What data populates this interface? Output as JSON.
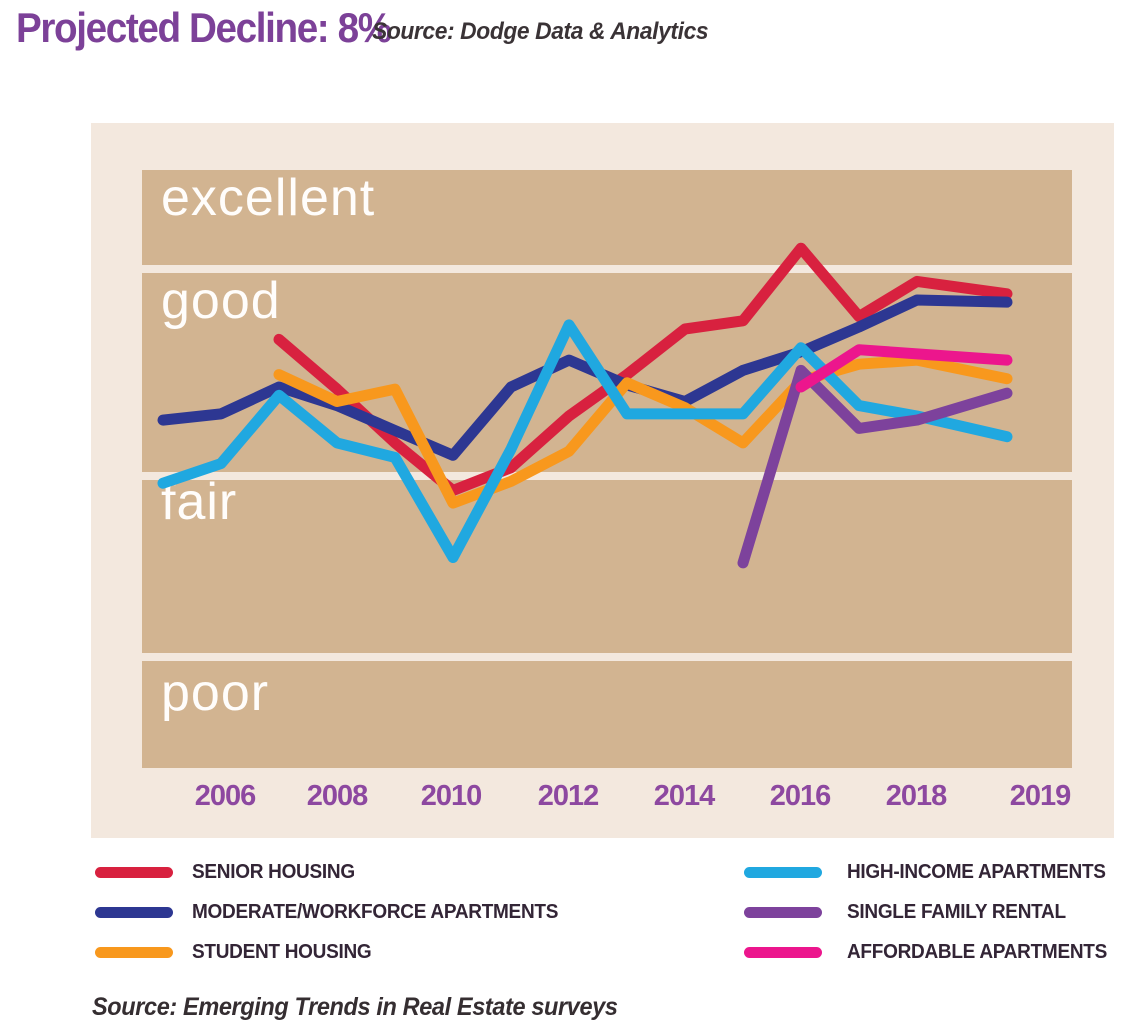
{
  "header": {
    "title": "Projected Decline: 8%",
    "source": "Source:  Dodge Data & Analytics"
  },
  "footer": {
    "source": "Source:  Emerging Trends in Real Estate surveys"
  },
  "colors": {
    "panel": "#f3e8de",
    "band": "#d2b491",
    "band_label": "#ffffff",
    "title": "#7c4198",
    "axis_label": "#8d48a0",
    "legend_text": "#332536"
  },
  "chart_data": {
    "type": "line",
    "title": "Projected Decline: 8%",
    "band_labels": [
      "excellent",
      "good",
      "fair",
      "poor"
    ],
    "x_ticks": [
      "2006",
      "2008",
      "2010",
      "2012",
      "2014",
      "2016",
      "2018",
      "2019"
    ],
    "x_range": [
      2005,
      2019
    ],
    "grid": "horizontal band separators",
    "legend_position": "bottom",
    "value_scale": "0-4 survey rating: 0 = bottom of poor band, 1 = poor/fair boundary, 2 = fair/good boundary, 3 = good/excellent boundary, 4 = top of excellent band",
    "series": [
      {
        "name": "SENIOR HOUSING",
        "color": "#d8213f",
        "points": [
          [
            2007,
            2.66
          ],
          [
            2008,
            2.42
          ],
          [
            2009,
            2.16
          ],
          [
            2010,
            1.92
          ],
          [
            2011,
            2.04
          ],
          [
            2012,
            2.29
          ],
          [
            2013,
            2.49
          ],
          [
            2014,
            2.71
          ],
          [
            2015,
            2.75
          ],
          [
            2016,
            3.21
          ],
          [
            2017,
            2.77
          ],
          [
            2018,
            2.94
          ],
          [
            2019,
            2.88
          ]
        ]
      },
      {
        "name": "MODERATE/WORKFORCE APARTMENTS",
        "color": "#2d3792",
        "points": [
          [
            2005,
            2.27
          ],
          [
            2006,
            2.3
          ],
          [
            2007,
            2.43
          ],
          [
            2008,
            2.34
          ],
          [
            2009,
            2.22
          ],
          [
            2010,
            2.1
          ],
          [
            2011,
            2.43
          ],
          [
            2012,
            2.56
          ],
          [
            2013,
            2.44
          ],
          [
            2014,
            2.36
          ],
          [
            2015,
            2.51
          ],
          [
            2016,
            2.6
          ],
          [
            2017,
            2.72
          ],
          [
            2018,
            2.85
          ],
          [
            2019,
            2.84
          ]
        ]
      },
      {
        "name": "STUDENT HOUSING",
        "color": "#f8981d",
        "points": [
          [
            2007,
            2.49
          ],
          [
            2008,
            2.36
          ],
          [
            2009,
            2.42
          ],
          [
            2010,
            1.85
          ],
          [
            2011,
            1.97
          ],
          [
            2012,
            2.12
          ],
          [
            2013,
            2.45
          ],
          [
            2014,
            2.33
          ],
          [
            2015,
            2.16
          ],
          [
            2016,
            2.46
          ],
          [
            2017,
            2.54
          ],
          [
            2018,
            2.56
          ],
          [
            2019,
            2.47
          ]
        ]
      },
      {
        "name": "HIGH-INCOME APARTMENTS",
        "color": "#20a8e0",
        "points": [
          [
            2005,
            1.96
          ],
          [
            2006,
            2.06
          ],
          [
            2007,
            2.39
          ],
          [
            2008,
            2.16
          ],
          [
            2009,
            2.09
          ],
          [
            2010,
            1.55
          ],
          [
            2011,
            2.13
          ],
          [
            2012,
            2.73
          ],
          [
            2013,
            2.3
          ],
          [
            2014,
            2.3
          ],
          [
            2015,
            2.3
          ],
          [
            2016,
            2.62
          ],
          [
            2017,
            2.34
          ],
          [
            2018,
            2.29
          ],
          [
            2019,
            2.19
          ]
        ]
      },
      {
        "name": "SINGLE FAMILY RENTAL",
        "color": "#7d429c",
        "points": [
          [
            2015,
            1.52
          ],
          [
            2016,
            2.51
          ],
          [
            2017,
            2.23
          ],
          [
            2018,
            2.27
          ],
          [
            2019,
            2.4
          ]
        ]
      },
      {
        "name": "AFFORDABLE APARTMENTS",
        "color": "#ec168d",
        "points": [
          [
            2016,
            2.43
          ],
          [
            2017,
            2.61
          ],
          [
            2018,
            2.59
          ],
          [
            2019,
            2.56
          ]
        ]
      }
    ]
  }
}
